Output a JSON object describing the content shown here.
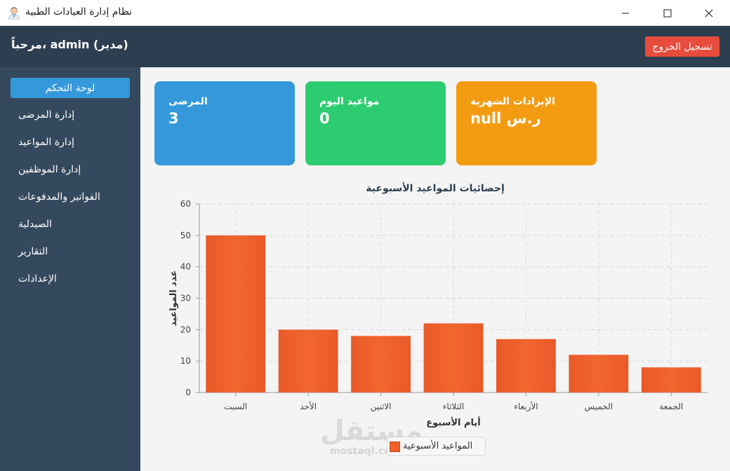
{
  "window": {
    "title": "نظام إدارة العيادات الطبية",
    "icon": "doctor-avatar-icon"
  },
  "header": {
    "welcome": "مرحباً، admin (مدير)",
    "logout_label": "تسجيل الخروج"
  },
  "sidebar": {
    "items": [
      {
        "label": "لوحة التحكم",
        "active": true
      },
      {
        "label": "إدارة المرضى"
      },
      {
        "label": "إدارة المواعيد"
      },
      {
        "label": "إدارة الموظفين"
      },
      {
        "label": "الفواتير والمدفوعات"
      },
      {
        "label": "الصيدلية"
      },
      {
        "label": "التقارير"
      },
      {
        "label": "الإعدادات"
      }
    ]
  },
  "cards": [
    {
      "label": "المرضى",
      "value": "3",
      "color": "#3498db"
    },
    {
      "label": "مواعيد اليوم",
      "value": "0",
      "color": "#2ecc71"
    },
    {
      "label": "الإيرادات الشهرية",
      "value": "null ر.س",
      "color": "#f39c12"
    }
  ],
  "chart_data": {
    "type": "bar",
    "title": "إحصائيات المواعيد الأسبوعية",
    "xlabel": "أيام الأسبوع",
    "ylabel": "عدد المواعيد",
    "categories": [
      "السبت",
      "الأحد",
      "الاثنين",
      "الثلاثاء",
      "الأربعاء",
      "الخميس",
      "الجمعة"
    ],
    "series": [
      {
        "name": "المواعيد الأسبوعية",
        "values": [
          50,
          20,
          18,
          22,
          17,
          12,
          8
        ]
      }
    ],
    "ylim": [
      0,
      60
    ],
    "yticks": [
      0,
      10,
      20,
      30,
      40,
      50,
      60
    ],
    "grid": true,
    "legend": "bottom",
    "bar_color": "#f0612b"
  },
  "watermark": {
    "text": "مستقل",
    "sub": "mostaql.com"
  }
}
